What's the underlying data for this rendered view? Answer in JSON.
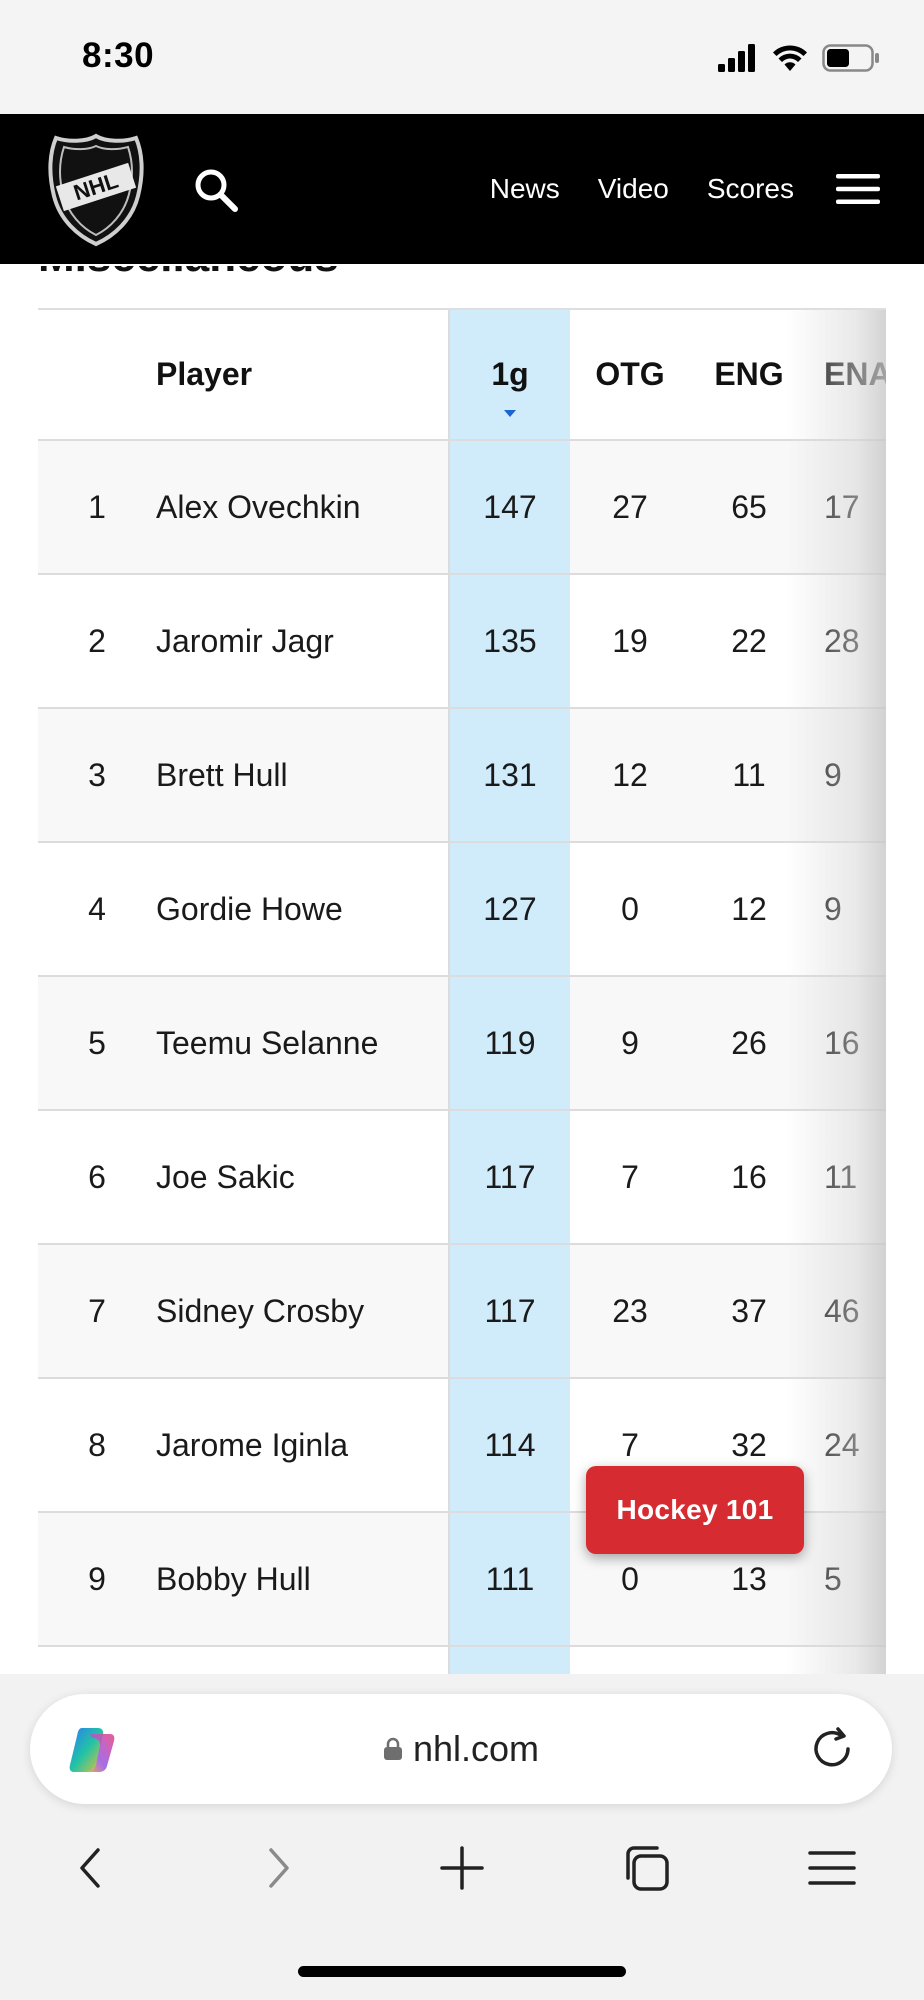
{
  "status_bar": {
    "time": "8:30"
  },
  "header": {
    "logo_label": "NHL",
    "nav": [
      "News",
      "Video",
      "Scores"
    ]
  },
  "section": {
    "heading_partial": "Miscellaneous"
  },
  "table": {
    "columns": [
      "",
      "Player",
      "1g",
      "OTG",
      "ENG",
      "ENA"
    ],
    "sorted_column": "1g",
    "rows": [
      {
        "rank": "1",
        "player": "Alex Ovechkin",
        "g1": "147",
        "otg": "27",
        "eng": "65",
        "ena": "17"
      },
      {
        "rank": "2",
        "player": "Jaromir Jagr",
        "g1": "135",
        "otg": "19",
        "eng": "22",
        "ena": "28"
      },
      {
        "rank": "3",
        "player": "Brett Hull",
        "g1": "131",
        "otg": "12",
        "eng": "11",
        "ena": "9"
      },
      {
        "rank": "4",
        "player": "Gordie Howe",
        "g1": "127",
        "otg": "0",
        "eng": "12",
        "ena": "9"
      },
      {
        "rank": "5",
        "player": "Teemu Selanne",
        "g1": "119",
        "otg": "9",
        "eng": "26",
        "ena": "16"
      },
      {
        "rank": "6",
        "player": "Joe Sakic",
        "g1": "117",
        "otg": "7",
        "eng": "16",
        "ena": "11"
      },
      {
        "rank": "7",
        "player": "Sidney Crosby",
        "g1": "117",
        "otg": "23",
        "eng": "37",
        "ena": "46"
      },
      {
        "rank": "8",
        "player": "Jarome Iginla",
        "g1": "114",
        "otg": "7",
        "eng": "32",
        "ena": "24"
      },
      {
        "rank": "9",
        "player": "Bobby Hull",
        "g1": "111",
        "otg": "0",
        "eng": "13",
        "ena": "5"
      }
    ]
  },
  "hockey_button": {
    "label": "Hockey 101"
  },
  "browser": {
    "url": "nhl.com"
  },
  "colors": {
    "sorted_column_bg": "#d0ecfb",
    "hockey_button_bg": "#d62b30",
    "header_bg": "#000000"
  }
}
